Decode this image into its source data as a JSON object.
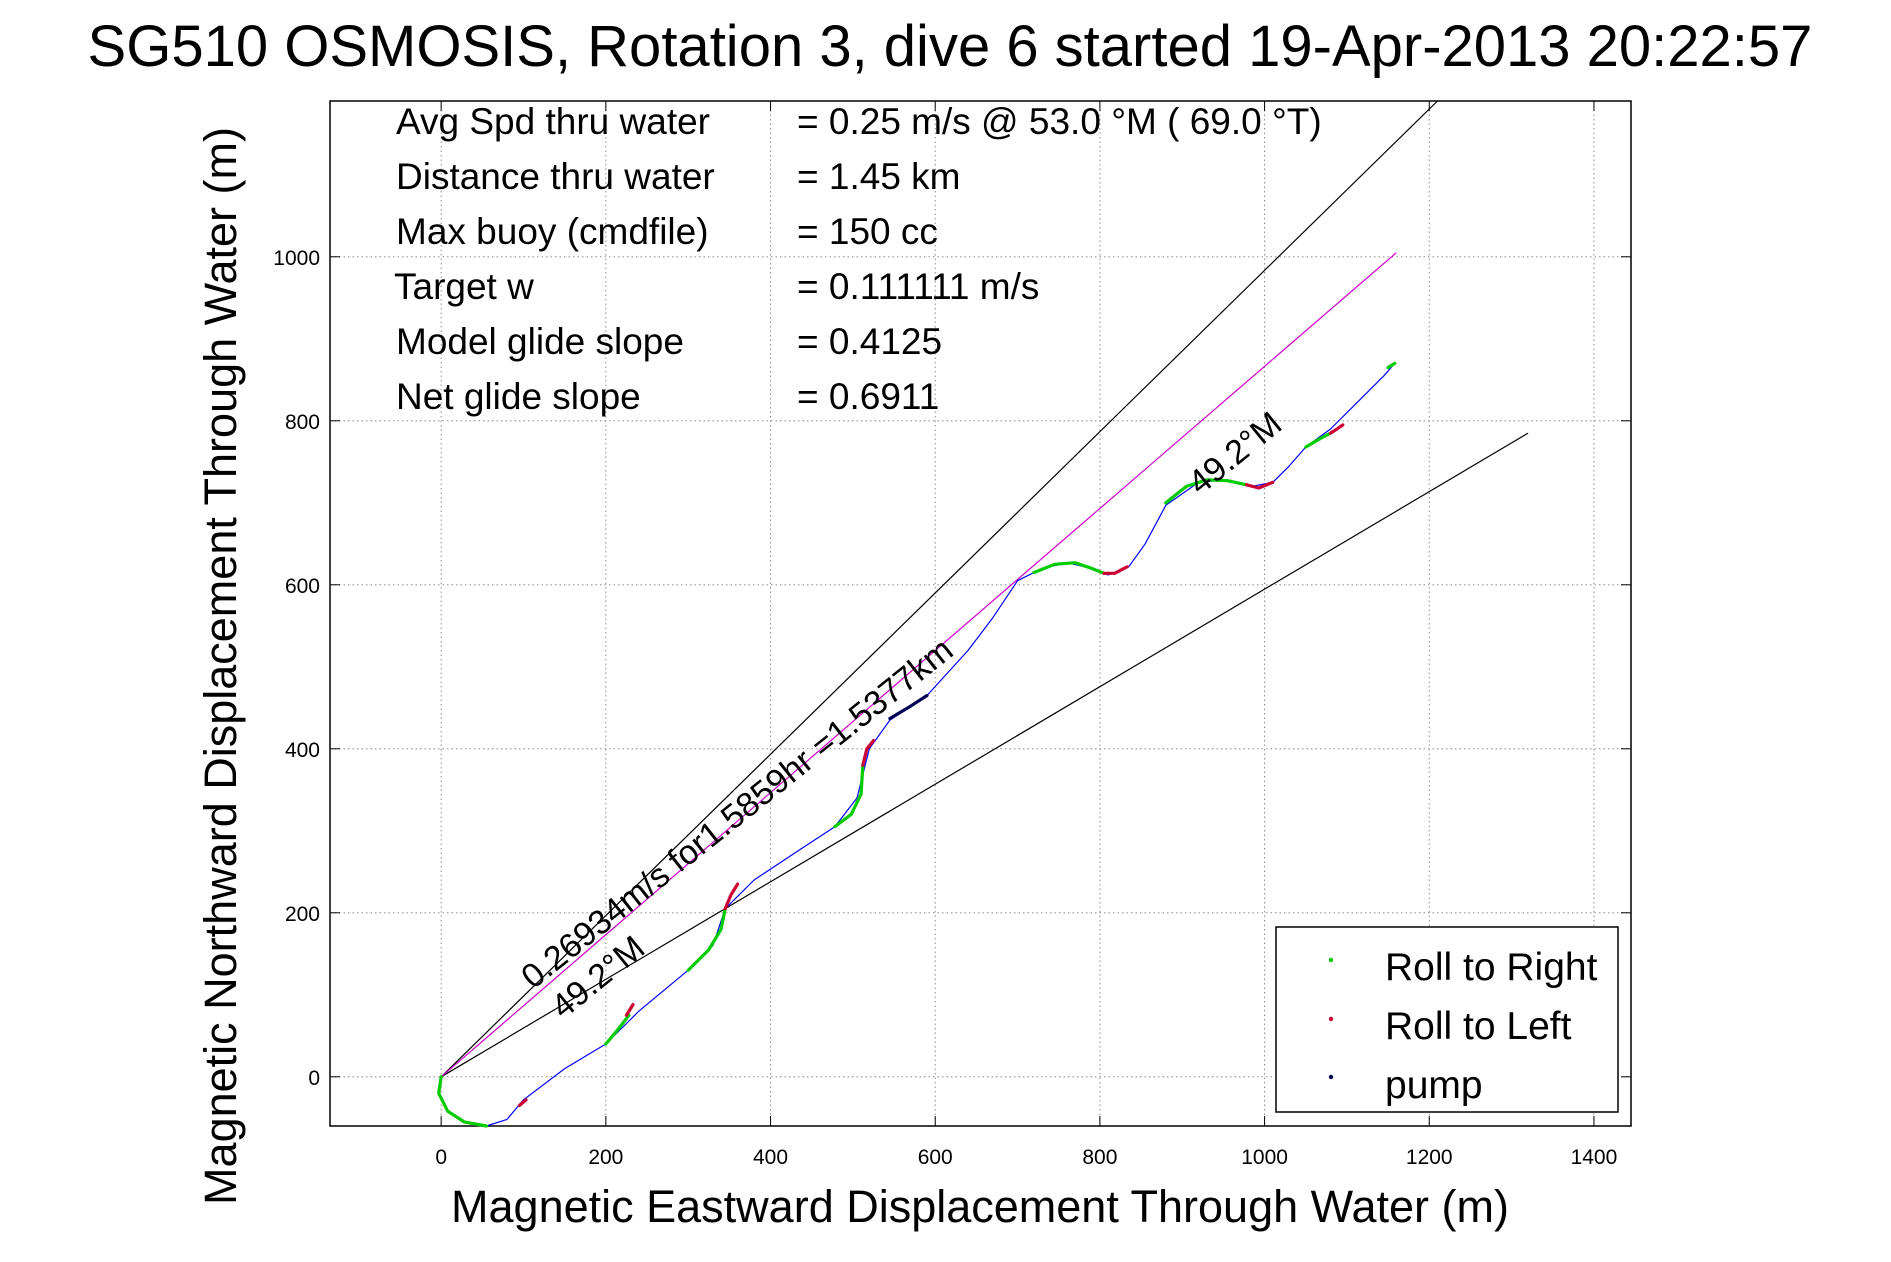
{
  "chart_data": {
    "type": "line",
    "title": "SG510 OSMOSIS, Rotation 3, dive 6 started 19-Apr-2013 20:22:57",
    "xlabel": "Magnetic Eastward Displacement Through Water (m)",
    "ylabel": "Magnetic Northward Displacement Through Water (m)",
    "xlim": [
      -135,
      1445
    ],
    "ylim": [
      -60,
      1190
    ],
    "xticks": [
      0,
      200,
      400,
      600,
      800,
      1000,
      1200,
      1400
    ],
    "yticks": [
      0,
      200,
      400,
      600,
      800,
      1000
    ],
    "xtick_labels": [
      "0",
      "200",
      "400",
      "600",
      "800",
      "1000",
      "1200",
      "1400"
    ],
    "ytick_labels": [
      "0",
      "200",
      "400",
      "600",
      "800",
      "1000"
    ],
    "grid": true,
    "legend_placement": "bottom-right",
    "info_lines": [
      {
        "label": "Avg Spd thru water",
        "value": "=  0.25 m/s @  53.0 °M ( 69.0 °T)"
      },
      {
        "label": "Distance thru water",
        "value": "=  1.45 km"
      },
      {
        "label": "Max buoy (cmdfile)",
        "value": "= 150 cc"
      },
      {
        "label": "Target w",
        "value": "= 0.111111 m/s"
      },
      {
        "label": "Model glide slope",
        "value": "= 0.4125"
      },
      {
        "label": "Net glide slope",
        "value": "= 0.6911"
      }
    ],
    "annotations": {
      "speed_line": "0.26934m/s for1.5859hr =1.5377km",
      "heading_low": "49.2°M",
      "heading_high": "49.2°M"
    },
    "reference_lines": [
      {
        "color": "#000000",
        "x": [
          0,
          1210
        ],
        "y": [
          0,
          1190
        ]
      },
      {
        "color": "#000000",
        "x": [
          0,
          1320
        ],
        "y": [
          0,
          785
        ]
      },
      {
        "color": "#cc00cc",
        "x": [
          0,
          1160
        ],
        "y": [
          0,
          1005
        ]
      }
    ],
    "track": {
      "color": "#0000ff",
      "x": [
        0,
        -3,
        8,
        28,
        55,
        80,
        100,
        150,
        200,
        240,
        300,
        330,
        345,
        380,
        440,
        478,
        505,
        520,
        545,
        590,
        640,
        670,
        700,
        730,
        760,
        790,
        810,
        835,
        855,
        880,
        920,
        955,
        985,
        1010,
        1030,
        1050,
        1080,
        1110,
        1145,
        1158
      ],
      "y": [
        0,
        -20,
        -42,
        -55,
        -60,
        -52,
        -28,
        10,
        40,
        80,
        130,
        160,
        205,
        240,
        280,
        305,
        340,
        400,
        435,
        465,
        520,
        560,
        605,
        620,
        627,
        620,
        612,
        622,
        650,
        697,
        725,
        728,
        720,
        725,
        745,
        768,
        790,
        820,
        855,
        870
      ]
    },
    "series": [
      {
        "name": "Roll to Right",
        "color": "#00cc00",
        "segments": [
          {
            "x": [
              0,
              -3,
              8,
              28,
              55
            ],
            "y": [
              0,
              -20,
              -42,
              -55,
              -60
            ]
          },
          {
            "x": [
              200,
              215,
              228
            ],
            "y": [
              40,
              58,
              75
            ]
          },
          {
            "x": [
              300,
              325,
              340,
              345
            ],
            "y": [
              130,
              155,
              180,
              205
            ]
          },
          {
            "x": [
              478,
              498,
              510,
              512
            ],
            "y": [
              305,
              320,
              345,
              380
            ]
          },
          {
            "x": [
              720,
              745,
              770,
              790,
              805
            ],
            "y": [
              615,
              625,
              627,
              620,
              614
            ]
          },
          {
            "x": [
              880,
              905,
              930,
              955,
              978
            ],
            "y": [
              700,
              720,
              728,
              727,
              722
            ]
          },
          {
            "x": [
              1050,
              1065,
              1080
            ],
            "y": [
              768,
              777,
              785
            ]
          },
          {
            "x": [
              1150,
              1158
            ],
            "y": [
              865,
              870
            ]
          }
        ]
      },
      {
        "name": "Roll to Left",
        "color": "#cc0033",
        "segments": [
          {
            "x": [
              95,
              103
            ],
            "y": [
              -35,
              -28
            ]
          },
          {
            "x": [
              225,
              233
            ],
            "y": [
              75,
              88
            ]
          },
          {
            "x": [
              345,
              352,
              360
            ],
            "y": [
              205,
              222,
              235
            ]
          },
          {
            "x": [
              512,
              517,
              525
            ],
            "y": [
              380,
              400,
              410
            ]
          },
          {
            "x": [
              805,
              818,
              833
            ],
            "y": [
              614,
              614,
              622
            ]
          },
          {
            "x": [
              978,
              993,
              1010
            ],
            "y": [
              722,
              718,
              725
            ]
          },
          {
            "x": [
              1080,
              1088,
              1095
            ],
            "y": [
              785,
              790,
              795
            ]
          }
        ]
      },
      {
        "name": "pump",
        "color": "#000055",
        "segments": [
          {
            "x": [
              545,
              570,
              590
            ],
            "y": [
              437,
              452,
              465
            ]
          }
        ]
      }
    ]
  }
}
